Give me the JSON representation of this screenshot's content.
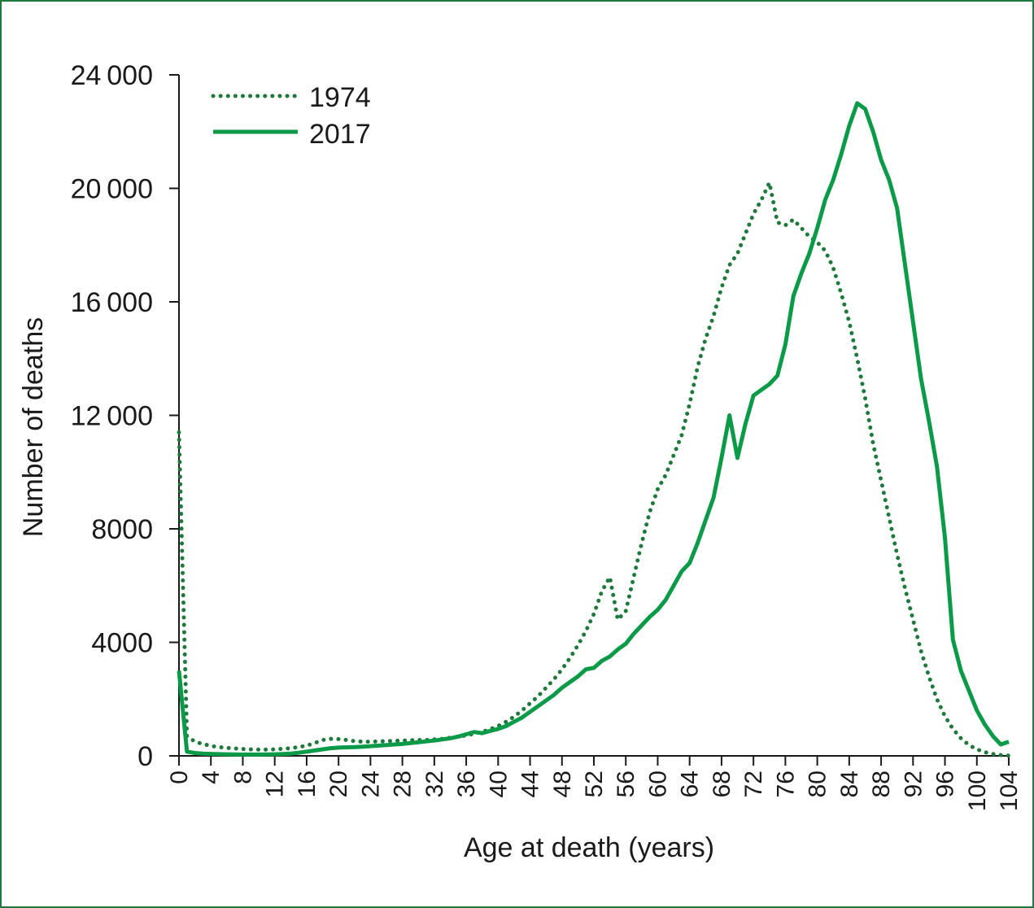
{
  "chart_data": {
    "type": "line",
    "xlabel": "Age at death (years)",
    "ylabel": "Number of deaths",
    "xlim": [
      0,
      104
    ],
    "ylim": [
      0,
      24000
    ],
    "y_ticks": [
      0,
      4000,
      8000,
      12000,
      16000,
      20000,
      24000
    ],
    "y_tick_labels": [
      "0",
      "4000",
      "8000",
      "12 000",
      "16 000",
      "20 000",
      "24 000"
    ],
    "x_ticks": [
      0,
      4,
      8,
      12,
      16,
      20,
      24,
      28,
      32,
      36,
      40,
      44,
      48,
      52,
      56,
      60,
      64,
      68,
      72,
      76,
      80,
      84,
      88,
      92,
      96,
      100,
      104
    ],
    "x_tick_labels": [
      "0",
      "4",
      "8",
      "12",
      "16",
      "20",
      "24",
      "28",
      "32",
      "36",
      "40",
      "44",
      "48",
      "52",
      "56",
      "60",
      "64",
      "68",
      "72",
      "76",
      "80",
      "84",
      "88",
      "92",
      "96",
      "100",
      "104"
    ],
    "legend_position": "top-left",
    "grid": false,
    "series": [
      {
        "name": "1974",
        "style": "dotted",
        "color": "#1e7a3c",
        "points": [
          [
            0,
            11400
          ],
          [
            1,
            700
          ],
          [
            2,
            500
          ],
          [
            3,
            420
          ],
          [
            4,
            350
          ],
          [
            5,
            310
          ],
          [
            6,
            280
          ],
          [
            7,
            260
          ],
          [
            8,
            240
          ],
          [
            9,
            230
          ],
          [
            10,
            220
          ],
          [
            11,
            220
          ],
          [
            12,
            230
          ],
          [
            13,
            250
          ],
          [
            14,
            270
          ],
          [
            15,
            310
          ],
          [
            16,
            360
          ],
          [
            17,
            450
          ],
          [
            18,
            560
          ],
          [
            19,
            600
          ],
          [
            20,
            590
          ],
          [
            21,
            560
          ],
          [
            22,
            520
          ],
          [
            23,
            500
          ],
          [
            24,
            500
          ],
          [
            25,
            510
          ],
          [
            26,
            520
          ],
          [
            27,
            530
          ],
          [
            28,
            540
          ],
          [
            29,
            550
          ],
          [
            30,
            560
          ],
          [
            31,
            560
          ],
          [
            32,
            580
          ],
          [
            33,
            600
          ],
          [
            34,
            640
          ],
          [
            35,
            680
          ],
          [
            36,
            720
          ],
          [
            37,
            780
          ],
          [
            38,
            850
          ],
          [
            39,
            940
          ],
          [
            40,
            1050
          ],
          [
            41,
            1200
          ],
          [
            42,
            1380
          ],
          [
            43,
            1600
          ],
          [
            44,
            1850
          ],
          [
            45,
            2100
          ],
          [
            46,
            2400
          ],
          [
            47,
            2700
          ],
          [
            48,
            3050
          ],
          [
            49,
            3450
          ],
          [
            50,
            3900
          ],
          [
            51,
            4400
          ],
          [
            52,
            5000
          ],
          [
            53,
            5800
          ],
          [
            54,
            6300
          ],
          [
            55,
            4800
          ],
          [
            56,
            5100
          ],
          [
            57,
            6300
          ],
          [
            58,
            7500
          ],
          [
            59,
            8600
          ],
          [
            60,
            9400
          ],
          [
            61,
            9900
          ],
          [
            62,
            10600
          ],
          [
            63,
            11300
          ],
          [
            64,
            12400
          ],
          [
            65,
            13700
          ],
          [
            66,
            14700
          ],
          [
            67,
            15500
          ],
          [
            68,
            16500
          ],
          [
            69,
            17300
          ],
          [
            70,
            17700
          ],
          [
            71,
            18400
          ],
          [
            72,
            19100
          ],
          [
            73,
            19600
          ],
          [
            74,
            20200
          ],
          [
            75,
            18800
          ],
          [
            76,
            18700
          ],
          [
            77,
            18900
          ],
          [
            78,
            18600
          ],
          [
            79,
            18300
          ],
          [
            80,
            18100
          ],
          [
            81,
            17800
          ],
          [
            82,
            17200
          ],
          [
            83,
            16300
          ],
          [
            84,
            15300
          ],
          [
            85,
            14000
          ],
          [
            86,
            12600
          ],
          [
            87,
            11000
          ],
          [
            88,
            9700
          ],
          [
            89,
            8400
          ],
          [
            90,
            7100
          ],
          [
            91,
            5900
          ],
          [
            92,
            4800
          ],
          [
            93,
            3700
          ],
          [
            94,
            2800
          ],
          [
            95,
            2000
          ],
          [
            96,
            1400
          ],
          [
            97,
            950
          ],
          [
            98,
            620
          ],
          [
            99,
            380
          ],
          [
            100,
            230
          ],
          [
            101,
            130
          ],
          [
            102,
            70
          ],
          [
            103,
            30
          ],
          [
            104,
            10
          ]
        ]
      },
      {
        "name": "2017",
        "style": "solid",
        "color": "#0a9a48",
        "points": [
          [
            0,
            3000
          ],
          [
            1,
            150
          ],
          [
            2,
            100
          ],
          [
            3,
            80
          ],
          [
            4,
            70
          ],
          [
            5,
            60
          ],
          [
            6,
            55
          ],
          [
            7,
            50
          ],
          [
            8,
            45
          ],
          [
            9,
            45
          ],
          [
            10,
            45
          ],
          [
            11,
            50
          ],
          [
            12,
            55
          ],
          [
            13,
            65
          ],
          [
            14,
            80
          ],
          [
            15,
            110
          ],
          [
            16,
            150
          ],
          [
            17,
            190
          ],
          [
            18,
            230
          ],
          [
            19,
            270
          ],
          [
            20,
            290
          ],
          [
            21,
            300
          ],
          [
            22,
            310
          ],
          [
            23,
            320
          ],
          [
            24,
            340
          ],
          [
            25,
            360
          ],
          [
            26,
            380
          ],
          [
            27,
            400
          ],
          [
            28,
            420
          ],
          [
            29,
            450
          ],
          [
            30,
            480
          ],
          [
            31,
            510
          ],
          [
            32,
            540
          ],
          [
            33,
            580
          ],
          [
            34,
            620
          ],
          [
            35,
            680
          ],
          [
            36,
            760
          ],
          [
            37,
            840
          ],
          [
            38,
            800
          ],
          [
            39,
            880
          ],
          [
            40,
            950
          ],
          [
            41,
            1050
          ],
          [
            42,
            1200
          ],
          [
            43,
            1350
          ],
          [
            44,
            1550
          ],
          [
            45,
            1750
          ],
          [
            46,
            1950
          ],
          [
            47,
            2150
          ],
          [
            48,
            2400
          ],
          [
            49,
            2600
          ],
          [
            50,
            2800
          ],
          [
            51,
            3050
          ],
          [
            52,
            3100
          ],
          [
            53,
            3350
          ],
          [
            54,
            3500
          ],
          [
            55,
            3750
          ],
          [
            56,
            3950
          ],
          [
            57,
            4300
          ],
          [
            58,
            4600
          ],
          [
            59,
            4900
          ],
          [
            60,
            5150
          ],
          [
            61,
            5500
          ],
          [
            62,
            6000
          ],
          [
            63,
            6500
          ],
          [
            64,
            6800
          ],
          [
            65,
            7500
          ],
          [
            66,
            8300
          ],
          [
            67,
            9100
          ],
          [
            68,
            10500
          ],
          [
            69,
            12000
          ],
          [
            70,
            10500
          ],
          [
            71,
            11700
          ],
          [
            72,
            12700
          ],
          [
            73,
            12900
          ],
          [
            74,
            13100
          ],
          [
            75,
            13400
          ],
          [
            76,
            14500
          ],
          [
            77,
            16200
          ],
          [
            78,
            17000
          ],
          [
            79,
            17700
          ],
          [
            80,
            18600
          ],
          [
            81,
            19600
          ],
          [
            82,
            20300
          ],
          [
            83,
            21200
          ],
          [
            84,
            22200
          ],
          [
            85,
            23000
          ],
          [
            86,
            22800
          ],
          [
            87,
            22000
          ],
          [
            88,
            21000
          ],
          [
            89,
            20300
          ],
          [
            90,
            19300
          ],
          [
            91,
            17300
          ],
          [
            92,
            15300
          ],
          [
            93,
            13300
          ],
          [
            94,
            11800
          ],
          [
            95,
            10200
          ],
          [
            96,
            7700
          ],
          [
            97,
            4100
          ],
          [
            98,
            3000
          ],
          [
            99,
            2300
          ],
          [
            100,
            1600
          ],
          [
            101,
            1100
          ],
          [
            102,
            700
          ],
          [
            103,
            400
          ],
          [
            104,
            500
          ]
        ]
      }
    ]
  }
}
